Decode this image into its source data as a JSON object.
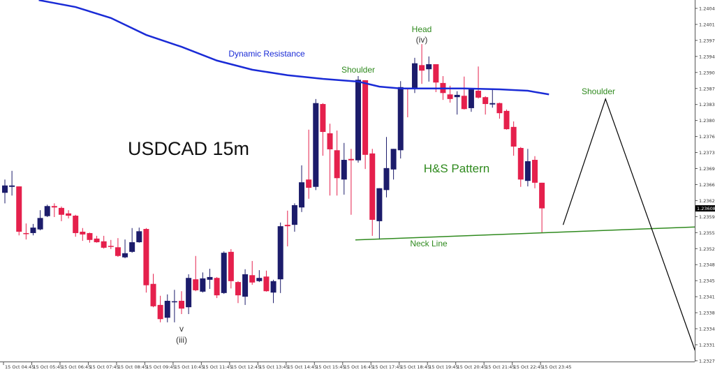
{
  "chart_data": {
    "type": "candlestick",
    "title": "USDCAD 15m",
    "colors": {
      "bull": "#1c1c6b",
      "bear": "#e5204c",
      "doji": "#666666",
      "moving_average": "#1a2bd6",
      "neck_line": "#2f8a1e",
      "projection": "#000000"
    },
    "y_axis": {
      "position": "right",
      "range": [
        1.2326,
        1.2406
      ],
      "ticks": [
        1.24045,
        1.2401,
        1.23975,
        1.2394,
        1.23905,
        1.2387,
        1.23835,
        1.238,
        1.23765,
        1.2373,
        1.23695,
        1.2366,
        1.23625,
        1.2359,
        1.23555,
        1.2352,
        1.23485,
        1.2345,
        1.23415,
        1.2338,
        1.23345,
        1.2331,
        1.23275
      ]
    },
    "current_price": "1.23608",
    "x_axis": {
      "labels": [
        "15 Oct 04:45",
        "15 Oct 05:45",
        "15 Oct 06:45",
        "15 Oct 07:45",
        "15 Oct 08:45",
        "15 Oct 09:45",
        "15 Oct 10:45",
        "15 Oct 11:45",
        "15 Oct 12:45",
        "15 Oct 13:45",
        "15 Oct 14:45",
        "15 Oct 15:45",
        "15 Oct 16:45",
        "15 Oct 17:45",
        "15 Oct 18:45",
        "15 Oct 19:45",
        "15 Oct 20:45",
        "15 Oct 21:45",
        "15 Oct 22:45",
        "15 Oct 23:45"
      ],
      "bars_per_label": 4
    },
    "grid": false,
    "ohlc": [
      [
        1.23642,
        1.23671,
        1.23619,
        1.23658
      ],
      [
        1.23655,
        1.2369,
        1.23636,
        1.23658
      ],
      [
        1.23656,
        1.23656,
        1.23549,
        1.23557
      ],
      [
        1.23554,
        1.23575,
        1.2354,
        1.23552
      ],
      [
        1.23554,
        1.23574,
        1.23549,
        1.23566
      ],
      [
        1.23562,
        1.23604,
        1.2356,
        1.23587
      ],
      [
        1.23591,
        1.23616,
        1.23589,
        1.23613
      ],
      [
        1.23613,
        1.23619,
        1.23589,
        1.2361
      ],
      [
        1.23609,
        1.23612,
        1.2358,
        1.23594
      ],
      [
        1.23597,
        1.23604,
        1.23586,
        1.23592
      ],
      [
        1.23592,
        1.23594,
        1.23546,
        1.23554
      ],
      [
        1.23557,
        1.23565,
        1.23537,
        1.23551
      ],
      [
        1.23554,
        1.23555,
        1.23533,
        1.23539
      ],
      [
        1.23542,
        1.23548,
        1.23533,
        1.23534
      ],
      [
        1.23536,
        1.23548,
        1.2352,
        1.23522
      ],
      [
        1.23526,
        1.23539,
        1.23519,
        1.23525
      ],
      [
        1.23523,
        1.23543,
        1.23502,
        1.23504
      ],
      [
        1.23501,
        1.2354,
        1.23499,
        1.2351
      ],
      [
        1.23513,
        1.23565,
        1.23511,
        1.23534
      ],
      [
        1.23534,
        1.23566,
        1.23533,
        1.23558
      ],
      [
        1.23563,
        1.23565,
        1.23424,
        1.2344
      ],
      [
        1.23443,
        1.23465,
        1.23392,
        1.23394
      ],
      [
        1.23397,
        1.23417,
        1.23359,
        1.23366
      ],
      [
        1.23369,
        1.2342,
        1.23359,
        1.23406
      ],
      [
        1.23404,
        1.2343,
        1.23359,
        1.23405
      ],
      [
        1.23406,
        1.23427,
        1.23377,
        1.23389
      ],
      [
        1.23392,
        1.23464,
        1.23377,
        1.23456
      ],
      [
        1.23453,
        1.23504,
        1.23427,
        1.23429
      ],
      [
        1.23426,
        1.23468,
        1.23424,
        1.23455
      ],
      [
        1.23452,
        1.23476,
        1.23432,
        1.23458
      ],
      [
        1.23456,
        1.23458,
        1.23412,
        1.23418
      ],
      [
        1.23423,
        1.23514,
        1.23421,
        1.23511
      ],
      [
        1.23513,
        1.23519,
        1.23433,
        1.23449
      ],
      [
        1.23447,
        1.23449,
        1.23401,
        1.23418
      ],
      [
        1.23415,
        1.23475,
        1.23397,
        1.23464
      ],
      [
        1.23462,
        1.23493,
        1.23441,
        1.23446
      ],
      [
        1.23449,
        1.23473,
        1.23447,
        1.23456
      ],
      [
        1.23459,
        1.23472,
        1.23426,
        1.23427
      ],
      [
        1.23424,
        1.23452,
        1.23401,
        1.23449
      ],
      [
        1.23453,
        1.23577,
        1.23423,
        1.23569
      ],
      [
        1.23572,
        1.23603,
        1.23525,
        1.23569
      ],
      [
        1.23572,
        1.23619,
        1.23557,
        1.23615
      ],
      [
        1.2361,
        1.23702,
        1.236,
        1.23665
      ],
      [
        1.23671,
        1.2378,
        1.23629,
        1.23653
      ],
      [
        1.23655,
        1.23847,
        1.23648,
        1.23838
      ],
      [
        1.23836,
        1.23838,
        1.23723,
        1.23775
      ],
      [
        1.23772,
        1.23793,
        1.23636,
        1.23737
      ],
      [
        1.23735,
        1.23778,
        1.23636,
        1.23674
      ],
      [
        1.23671,
        1.23751,
        1.23638,
        1.23714
      ],
      [
        1.23716,
        1.23738,
        1.23594,
        1.23713
      ],
      [
        1.23713,
        1.23897,
        1.23708,
        1.23889
      ],
      [
        1.23888,
        1.23888,
        1.23694,
        1.23725
      ],
      [
        1.23728,
        1.23738,
        1.23548,
        1.23583
      ],
      [
        1.2358,
        1.23652,
        1.2354,
        1.23652
      ],
      [
        1.23648,
        1.23764,
        1.23632,
        1.23696
      ],
      [
        1.23693,
        1.23738,
        1.23671,
        1.23738
      ],
      [
        1.23735,
        1.23886,
        1.23717,
        1.23873
      ],
      [
        1.23871,
        1.23871,
        1.23807,
        1.23868
      ],
      [
        1.2387,
        1.23937,
        1.2386,
        1.23925
      ],
      [
        1.23921,
        1.23967,
        1.2388,
        1.23909
      ],
      [
        1.23912,
        1.2394,
        1.23885,
        1.23923
      ],
      [
        1.23923,
        1.23923,
        1.23862,
        1.23883
      ],
      [
        1.23882,
        1.23897,
        1.23845,
        1.2386
      ],
      [
        1.23857,
        1.23876,
        1.23839,
        1.23847
      ],
      [
        1.23851,
        1.23864,
        1.23813,
        1.23856
      ],
      [
        1.23854,
        1.23896,
        1.23824,
        1.23825
      ],
      [
        1.23827,
        1.23868,
        1.23819,
        1.23868
      ],
      [
        1.23865,
        1.23918,
        1.23848,
        1.2385
      ],
      [
        1.23851,
        1.23853,
        1.23813,
        1.23836
      ],
      [
        1.23835,
        1.23868,
        1.23828,
        1.23838
      ],
      [
        1.23838,
        1.23839,
        1.23804,
        1.23816
      ],
      [
        1.23821,
        1.23824,
        1.2378,
        1.23781
      ],
      [
        1.23786,
        1.23798,
        1.23723,
        1.23743
      ],
      [
        1.2374,
        1.23742,
        1.23655,
        1.23671
      ],
      [
        1.23668,
        1.23738,
        1.23656,
        1.23711
      ],
      [
        1.23714,
        1.23722,
        1.23652,
        1.23664
      ],
      [
        1.23664,
        1.23664,
        1.23555,
        1.23608
      ]
    ],
    "moving_average": [
      [
        4.8,
        1.24063
      ],
      [
        10,
        1.24048
      ],
      [
        15,
        1.24024
      ],
      [
        20,
        1.23987
      ],
      [
        25,
        1.23961
      ],
      [
        30,
        1.23931
      ],
      [
        35,
        1.23911
      ],
      [
        40,
        1.23899
      ],
      [
        45,
        1.23891
      ],
      [
        50,
        1.23885
      ],
      [
        53,
        1.23874
      ],
      [
        56,
        1.2387
      ],
      [
        60,
        1.2387
      ],
      [
        65,
        1.2387
      ],
      [
        70,
        1.23868
      ],
      [
        74,
        1.23865
      ],
      [
        77,
        1.23857
      ]
    ],
    "neck_line": [
      [
        49.6,
        1.23539
      ],
      [
        98.8,
        1.23568
      ]
    ],
    "projection": [
      [
        79,
        1.23572
      ],
      [
        85,
        1.23847
      ],
      [
        98.3,
        1.2327
      ]
    ],
    "annotations": {
      "head": "Head",
      "wave_iv": "(iv)",
      "left_shoulder": "Shoulder",
      "right_shoulder": "Shoulder",
      "dynamic_resistance": "Dynamic Resistance",
      "pattern": "H&S Pattern",
      "neck_line": "Neck Line",
      "wave_v": "v",
      "wave_iii": "(iii)"
    }
  }
}
